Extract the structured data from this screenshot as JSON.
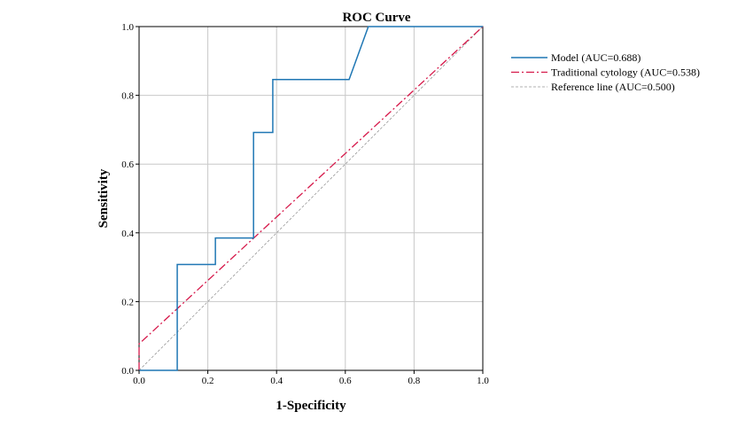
{
  "chart_data": {
    "type": "line",
    "title": "ROC Curve",
    "xlabel": "1-Specificity",
    "ylabel": "Sensitivity",
    "xlim": [
      0,
      1
    ],
    "ylim": [
      0,
      1
    ],
    "xticks": [
      "0.0",
      "0.2",
      "0.4",
      "0.6",
      "0.8",
      "1.0"
    ],
    "yticks": [
      "0.0",
      "0.2",
      "0.4",
      "0.6",
      "0.8",
      "1.0"
    ],
    "grid": true,
    "legend_position": "right",
    "series": [
      {
        "name": "Model (AUC=0.688)",
        "color": "#1f77b4",
        "style": "solid",
        "x": [
          0,
          0.111,
          0.111,
          0.222,
          0.222,
          0.333,
          0.333,
          0.389,
          0.389,
          0.611,
          0.667,
          1.0
        ],
        "y": [
          0,
          0,
          0.308,
          0.308,
          0.385,
          0.385,
          0.692,
          0.692,
          0.846,
          0.846,
          1.0,
          1.0
        ]
      },
      {
        "name": "Traditional cytology (AUC=0.538)",
        "color": "#d6184a",
        "style": "dashdot",
        "x": [
          0,
          0,
          1.0
        ],
        "y": [
          0,
          0.077,
          1.0
        ]
      },
      {
        "name": "Reference line (AUC=0.500)",
        "color": "#999999",
        "style": "dashed",
        "x": [
          0,
          1.0
        ],
        "y": [
          0,
          1.0
        ]
      }
    ]
  }
}
